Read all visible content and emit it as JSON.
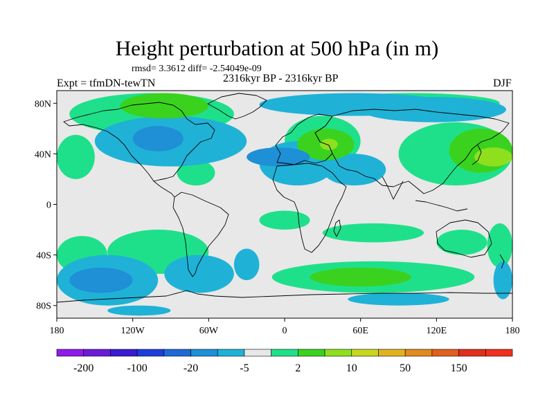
{
  "header": {
    "title": "Height perturbation at 500 hPa (in m)",
    "stats": "rmsd= 3.3612 diff= -2.54049e-09",
    "subtitle": "2316kyr BP - 2316kyr BP",
    "left_label": "Expt = tfmDN-tewTN",
    "right_label": "DJF"
  },
  "map": {
    "variable": "geopotential height perturbation",
    "level": "500 hPa",
    "unit": "m",
    "projection": "cylindrical equidistant",
    "lon_range": [
      -180,
      180
    ],
    "lat_range": [
      -90,
      90
    ],
    "lon_ticks": [
      {
        "value": -180,
        "label": "180"
      },
      {
        "value": -120,
        "label": "120W"
      },
      {
        "value": -60,
        "label": "60W"
      },
      {
        "value": 0,
        "label": "0"
      },
      {
        "value": 60,
        "label": "60E"
      },
      {
        "value": 120,
        "label": "120E"
      },
      {
        "value": 180,
        "label": "180"
      }
    ],
    "lat_ticks": [
      {
        "value": 80,
        "label": "80N"
      },
      {
        "value": 40,
        "label": "40N"
      },
      {
        "value": 0,
        "label": "0"
      },
      {
        "value": -40,
        "label": "40S"
      },
      {
        "value": -80,
        "label": "80S"
      }
    ],
    "background_color": "#e8e8e8",
    "coastline_color": "#000000"
  },
  "colorbar": {
    "colors": [
      "#8f1be6",
      "#6a1bd6",
      "#3a1bd0",
      "#1d3fd8",
      "#1e6ad6",
      "#1f8fd6",
      "#1fb2d6",
      "#e8e8e8",
      "#1fe08a",
      "#3ad21f",
      "#8ee01f",
      "#c8d61f",
      "#e0b21f",
      "#e08a1f",
      "#e0601f",
      "#e0301f",
      "#f03020"
    ],
    "labels": [
      {
        "between": [
          0,
          1
        ],
        "text": "-200"
      },
      {
        "between": [
          2,
          3
        ],
        "text": "-100"
      },
      {
        "between": [
          4,
          5
        ],
        "text": "-20"
      },
      {
        "between": [
          6,
          7
        ],
        "text": "-5"
      },
      {
        "between": [
          8,
          9
        ],
        "text": "2"
      },
      {
        "between": [
          10,
          11
        ],
        "text": "10"
      },
      {
        "between": [
          12,
          13
        ],
        "text": "50"
      },
      {
        "between": [
          14,
          15
        ],
        "text": "150"
      }
    ]
  },
  "fields": {
    "positive_light": {
      "color": "#1fe08a",
      "regions": [
        {
          "lon": [
            -170,
            -40
          ],
          "lat": [
            55,
            88
          ]
        },
        {
          "lon": [
            30,
            170
          ],
          "lat": [
            72,
            88
          ]
        },
        {
          "lon": [
            -180,
            -150
          ],
          "lat": [
            20,
            55
          ]
        },
        {
          "lon": [
            -85,
            -55
          ],
          "lat": [
            15,
            35
          ]
        },
        {
          "lon": [
            -140,
            -60
          ],
          "lat": [
            -55,
            -20
          ]
        },
        {
          "lon": [
            -10,
            150
          ],
          "lat": [
            -70,
            -45
          ]
        },
        {
          "lon": [
            -180,
            -140
          ],
          "lat": [
            -55,
            -25
          ]
        },
        {
          "lon": [
            120,
            160
          ],
          "lat": [
            -40,
            -20
          ]
        },
        {
          "lon": [
            160,
            180
          ],
          "lat": [
            -50,
            -15
          ]
        },
        {
          "lon": [
            30,
            110
          ],
          "lat": [
            -30,
            -15
          ]
        },
        {
          "lon": [
            -20,
            20
          ],
          "lat": [
            -20,
            -5
          ]
        },
        {
          "lon": [
            90,
            180
          ],
          "lat": [
            15,
            65
          ]
        },
        {
          "lon": [
            0,
            60
          ],
          "lat": [
            30,
            70
          ]
        }
      ]
    },
    "positive_strong": {
      "color": "#3ad21f",
      "regions": [
        {
          "lon": [
            -130,
            -60
          ],
          "lat": [
            68,
            88
          ]
        },
        {
          "lon": [
            10,
            55
          ],
          "lat": [
            35,
            60
          ]
        },
        {
          "lon": [
            130,
            180
          ],
          "lat": [
            25,
            60
          ]
        },
        {
          "lon": [
            20,
            100
          ],
          "lat": [
            -65,
            -50
          ]
        }
      ]
    },
    "positive_peak": {
      "color": "#8ee01f",
      "regions": [
        {
          "lon": [
            28,
            42
          ],
          "lat": [
            43,
            52
          ]
        },
        {
          "lon": [
            150,
            180
          ],
          "lat": [
            30,
            45
          ]
        }
      ]
    },
    "negative_light": {
      "color": "#1fb2d6",
      "regions": [
        {
          "lon": [
            -150,
            -30
          ],
          "lat": [
            30,
            70
          ]
        },
        {
          "lon": [
            -20,
            40
          ],
          "lat": [
            15,
            50
          ]
        },
        {
          "lon": [
            30,
            80
          ],
          "lat": [
            15,
            40
          ]
        },
        {
          "lon": [
            -20,
            130
          ],
          "lat": [
            70,
            88
          ]
        },
        {
          "lon": [
            60,
            175
          ],
          "lat": [
            65,
            85
          ]
        },
        {
          "lon": [
            -180,
            -100
          ],
          "lat": [
            -80,
            -40
          ]
        },
        {
          "lon": [
            -95,
            -40
          ],
          "lat": [
            -70,
            -40
          ]
        },
        {
          "lon": [
            -40,
            -20
          ],
          "lat": [
            -60,
            -35
          ]
        },
        {
          "lon": [
            165,
            180
          ],
          "lat": [
            -75,
            -45
          ]
        },
        {
          "lon": [
            -140,
            -90
          ],
          "lat": [
            -88,
            -80
          ]
        },
        {
          "lon": [
            50,
            130
          ],
          "lat": [
            -80,
            -70
          ]
        }
      ]
    },
    "negative_strong": {
      "color": "#1f8fd6",
      "regions": [
        {
          "lon": [
            -120,
            -80
          ],
          "lat": [
            42,
            62
          ]
        },
        {
          "lon": [
            -30,
            20
          ],
          "lat": [
            30,
            45
          ]
        },
        {
          "lon": [
            -170,
            -120
          ],
          "lat": [
            -70,
            -50
          ]
        }
      ]
    }
  }
}
